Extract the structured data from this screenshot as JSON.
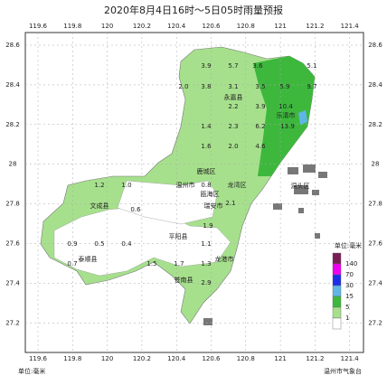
{
  "title": "2020年8月4日16时～5日05时雨量预报",
  "lon_ticks": [
    119.6,
    119.8,
    120,
    120.2,
    120.4,
    120.6,
    120.8,
    121,
    121.2,
    121.4
  ],
  "lat_ticks": [
    28.6,
    28.4,
    28.2,
    28,
    27.8,
    27.6,
    27.4,
    27.2
  ],
  "places": [
    "永嘉县",
    "乐清市",
    "鹿城区",
    "温州市",
    "龙湾区",
    "瓯海区",
    "瑞安市",
    "文成县",
    "洞头区",
    "平阳县",
    "龙港市",
    "泰顺县",
    "苍南县"
  ],
  "rain": [
    3.9,
    5.7,
    3.6,
    5.1,
    {
      "value": 2,
      "label": "2.0"
    },
    3.8,
    3.1,
    3.5,
    5.9,
    9.7,
    2.2,
    3.9,
    10.4,
    1.4,
    2.3,
    6.2,
    13.9,
    1.6,
    {
      "value": 2,
      "label": "2.0"
    },
    4.6,
    1.2,
    {
      "value": 1,
      "label": "1.0"
    },
    0.8,
    2.1,
    1.9,
    0.6,
    0.9,
    0.5,
    0.4,
    0.7,
    1.5,
    1.3,
    1.7,
    2.9,
    1.1
  ],
  "legend": {
    "title": "单位:毫米",
    "levels": [
      140,
      70,
      30,
      15,
      5,
      1
    ],
    "colors": [
      "#7a1e56",
      "#f000f0",
      "#1e2ce8",
      "#5fb6e6",
      "#3db83d",
      "#a6e08c",
      "#ffffff"
    ]
  },
  "footer_left": "单位:毫米",
  "footer_right": "温州市气象台"
}
